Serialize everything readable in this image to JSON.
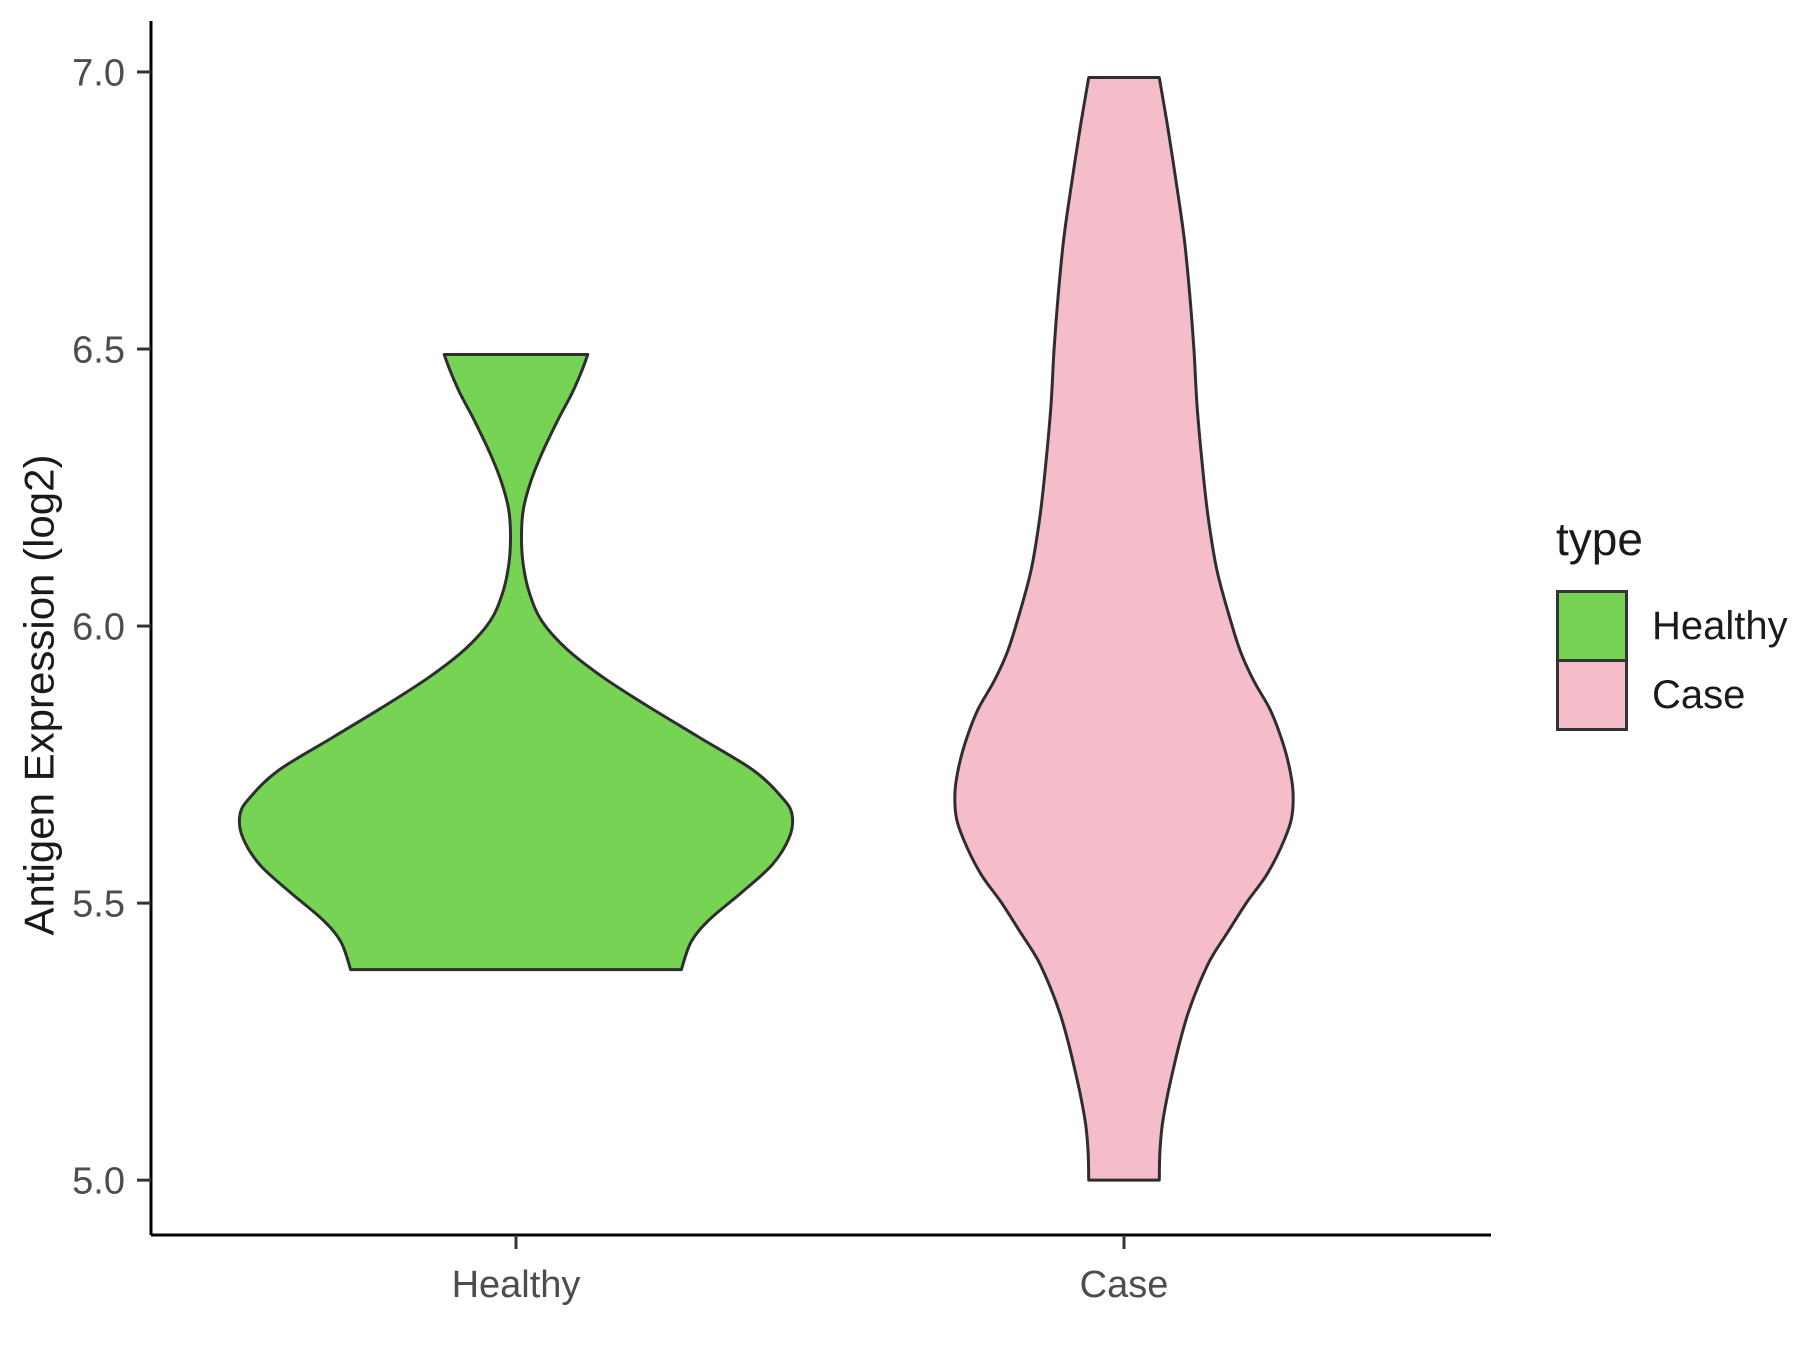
{
  "chart_data": {
    "type": "violin",
    "title": "",
    "xlabel": "",
    "ylabel": "Antigen Expression (log2)",
    "categories": [
      "Healthy",
      "Case"
    ],
    "y_ticks": [
      5.0,
      5.5,
      6.0,
      6.5,
      7.0
    ],
    "y_range": [
      4.901,
      7.092
    ],
    "grid": false,
    "legend": {
      "title": "type",
      "position": "right",
      "entries": [
        {
          "label": "Healthy",
          "color": "#77D353"
        },
        {
          "label": "Case",
          "color": "#F5BCC9"
        }
      ]
    },
    "violins": [
      {
        "category": "Healthy",
        "fill": "#77D353",
        "stroke": "#2e2e2e",
        "y_min": 5.38,
        "y_max": 6.49,
        "profile": [
          [
            6.49,
            0.118
          ],
          [
            6.46,
            0.108
          ],
          [
            6.42,
            0.092
          ],
          [
            6.37,
            0.068
          ],
          [
            6.31,
            0.042
          ],
          [
            6.26,
            0.024
          ],
          [
            6.21,
            0.012
          ],
          [
            6.16,
            0.009
          ],
          [
            6.11,
            0.012
          ],
          [
            6.06,
            0.022
          ],
          [
            6.01,
            0.042
          ],
          [
            5.96,
            0.082
          ],
          [
            5.91,
            0.14
          ],
          [
            5.86,
            0.21
          ],
          [
            5.8,
            0.3
          ],
          [
            5.74,
            0.39
          ],
          [
            5.69,
            0.438
          ],
          [
            5.66,
            0.454
          ],
          [
            5.62,
            0.45
          ],
          [
            5.57,
            0.422
          ],
          [
            5.52,
            0.372
          ],
          [
            5.47,
            0.318
          ],
          [
            5.43,
            0.288
          ],
          [
            5.38,
            0.272
          ]
        ]
      },
      {
        "category": "Case",
        "fill": "#F5BCC9",
        "stroke": "#2e2e2e",
        "y_min": 5.0,
        "y_max": 6.99,
        "profile": [
          [
            6.99,
            0.058
          ],
          [
            6.9,
            0.072
          ],
          [
            6.8,
            0.086
          ],
          [
            6.7,
            0.099
          ],
          [
            6.6,
            0.108
          ],
          [
            6.5,
            0.115
          ],
          [
            6.4,
            0.12
          ],
          [
            6.3,
            0.128
          ],
          [
            6.2,
            0.138
          ],
          [
            6.1,
            0.153
          ],
          [
            6.0,
            0.178
          ],
          [
            5.95,
            0.193
          ],
          [
            5.9,
            0.214
          ],
          [
            5.85,
            0.24
          ],
          [
            5.8,
            0.258
          ],
          [
            5.75,
            0.271
          ],
          [
            5.7,
            0.278
          ],
          [
            5.65,
            0.275
          ],
          [
            5.6,
            0.258
          ],
          [
            5.55,
            0.234
          ],
          [
            5.5,
            0.201
          ],
          [
            5.45,
            0.172
          ],
          [
            5.4,
            0.143
          ],
          [
            5.35,
            0.122
          ],
          [
            5.3,
            0.105
          ],
          [
            5.25,
            0.092
          ],
          [
            5.2,
            0.081
          ],
          [
            5.15,
            0.071
          ],
          [
            5.1,
            0.063
          ],
          [
            5.05,
            0.059
          ],
          [
            5.0,
            0.058
          ]
        ]
      }
    ],
    "style": {
      "axis_color": "#000000",
      "tick_label_color": "#4d4d4d",
      "axis_title_color": "#1a1a1a"
    }
  }
}
